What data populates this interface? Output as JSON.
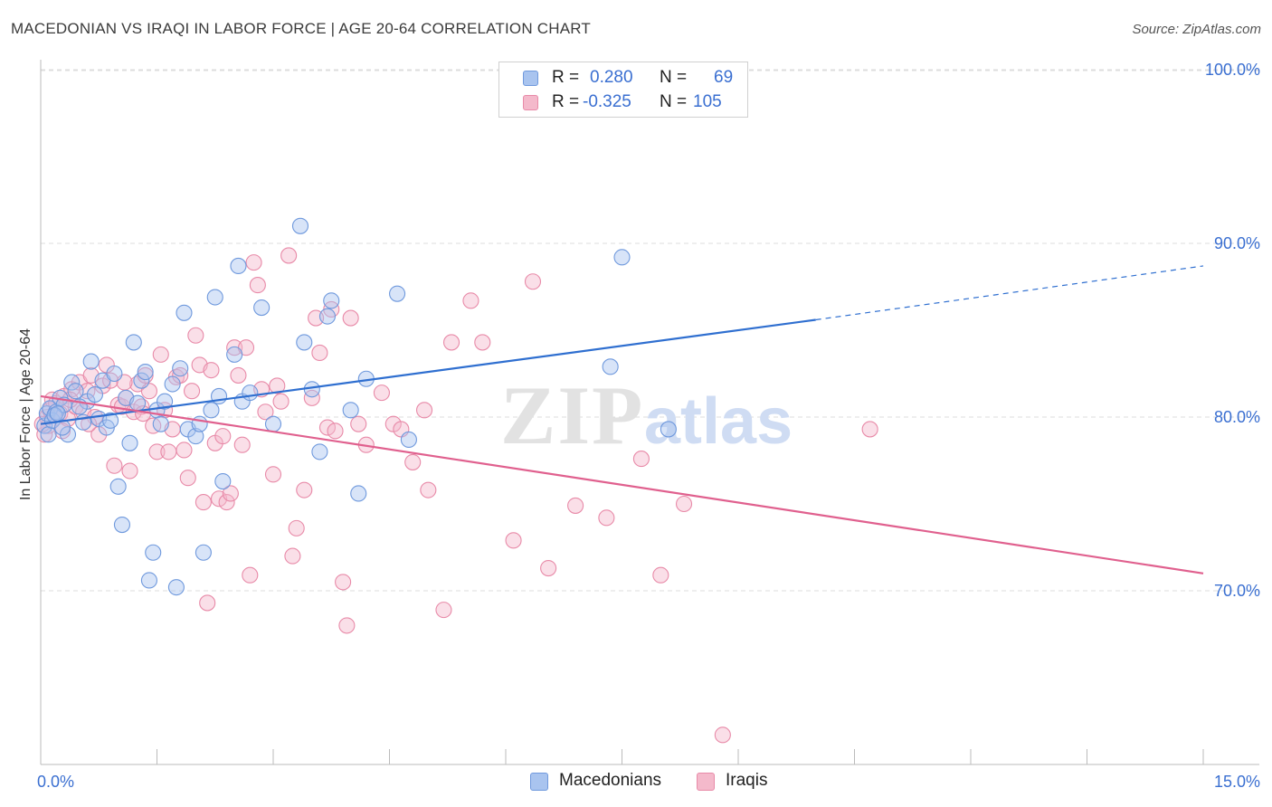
{
  "title": "MACEDONIAN VS IRAQI IN LABOR FORCE | AGE 20-64 CORRELATION CHART",
  "source": "Source: ZipAtlas.com",
  "watermark": {
    "zip": "ZIP",
    "atlas": "atlas"
  },
  "colors": {
    "blue_fill": "#a9c4ef",
    "blue_stroke": "#6f99dd",
    "blue_line": "#2f6fd0",
    "pink_fill": "#f4b9cb",
    "pink_stroke": "#e88aa8",
    "pink_line": "#e0608e",
    "axis_label": "#3a6fd1",
    "grid": "#dcdcdc"
  },
  "legend": {
    "rows": [
      {
        "r_label": "R =",
        "r_value": "0.280",
        "n_label": "N =",
        "n_value": "69"
      },
      {
        "r_label": "R =",
        "r_value": "-0.325",
        "n_label": "N =",
        "n_value": "105"
      }
    ]
  },
  "bottom_legend": [
    "Macedonians",
    "Iraqis"
  ],
  "chart_data": {
    "type": "scatter",
    "title": "MACEDONIAN VS IRAQI IN LABOR FORCE | AGE 20-64 CORRELATION CHART",
    "xlabel": "",
    "ylabel": "In Labor Force | Age 20-64",
    "xlim": [
      0,
      15
    ],
    "ylim": [
      60,
      102
    ],
    "x_tick_labels": [
      "0.0%",
      "15.0%"
    ],
    "y_ticks": [
      70,
      80,
      90,
      100
    ],
    "y_tick_labels": [
      "70.0%",
      "80.0%",
      "90.0%",
      "100.0%"
    ],
    "grid": true,
    "legend_placement": "top-center",
    "series": [
      {
        "name": "Macedonians",
        "color": "#6f99dd",
        "trend": {
          "x": [
            0,
            10
          ],
          "y": [
            79.6,
            85.6
          ],
          "dashed_extension_to_x": 15,
          "dashed_y_end": 88.7
        },
        "points": [
          [
            0.05,
            79.5
          ],
          [
            0.08,
            80.2
          ],
          [
            0.1,
            79.0
          ],
          [
            0.12,
            80.5
          ],
          [
            0.15,
            79.8
          ],
          [
            0.2,
            80.3
          ],
          [
            0.25,
            81.1
          ],
          [
            0.3,
            80.7
          ],
          [
            0.35,
            79.0
          ],
          [
            0.4,
            82.0
          ],
          [
            0.45,
            81.5
          ],
          [
            0.55,
            79.7
          ],
          [
            0.6,
            80.9
          ],
          [
            0.65,
            83.2
          ],
          [
            0.7,
            81.3
          ],
          [
            0.75,
            79.9
          ],
          [
            0.8,
            82.1
          ],
          [
            0.85,
            79.4
          ],
          [
            0.9,
            79.8
          ],
          [
            0.95,
            82.5
          ],
          [
            1.0,
            76.0
          ],
          [
            1.05,
            73.8
          ],
          [
            1.1,
            81.1
          ],
          [
            1.15,
            78.5
          ],
          [
            1.2,
            84.3
          ],
          [
            1.3,
            82.1
          ],
          [
            1.35,
            82.6
          ],
          [
            1.4,
            70.6
          ],
          [
            1.45,
            72.2
          ],
          [
            1.5,
            80.4
          ],
          [
            1.55,
            79.6
          ],
          [
            1.6,
            80.9
          ],
          [
            1.7,
            81.9
          ],
          [
            1.75,
            70.2
          ],
          [
            1.8,
            82.8
          ],
          [
            1.85,
            86.0
          ],
          [
            1.9,
            79.3
          ],
          [
            2.0,
            78.9
          ],
          [
            2.05,
            79.6
          ],
          [
            2.1,
            72.2
          ],
          [
            2.2,
            80.4
          ],
          [
            2.25,
            86.9
          ],
          [
            2.3,
            81.2
          ],
          [
            2.35,
            76.3
          ],
          [
            2.5,
            83.6
          ],
          [
            2.55,
            88.7
          ],
          [
            2.6,
            80.9
          ],
          [
            2.7,
            81.4
          ],
          [
            2.85,
            86.3
          ],
          [
            3.0,
            79.6
          ],
          [
            3.35,
            91.0
          ],
          [
            3.4,
            84.3
          ],
          [
            3.5,
            81.6
          ],
          [
            3.6,
            78.0
          ],
          [
            3.7,
            85.8
          ],
          [
            3.75,
            86.7
          ],
          [
            4.0,
            80.4
          ],
          [
            4.1,
            75.6
          ],
          [
            4.2,
            82.2
          ],
          [
            4.6,
            87.1
          ],
          [
            4.75,
            78.7
          ],
          [
            7.35,
            82.9
          ],
          [
            7.5,
            89.2
          ],
          [
            8.1,
            79.3
          ],
          [
            0.18,
            80.1
          ],
          [
            0.22,
            80.2
          ],
          [
            0.28,
            79.4
          ],
          [
            0.5,
            80.6
          ],
          [
            1.25,
            80.8
          ]
        ]
      },
      {
        "name": "Iraqis",
        "color": "#e88aa8",
        "trend": {
          "x": [
            0,
            15
          ],
          "y": [
            81.2,
            71.0
          ]
        },
        "points": [
          [
            0.05,
            79.0
          ],
          [
            0.08,
            80.0
          ],
          [
            0.1,
            79.5
          ],
          [
            0.12,
            80.4
          ],
          [
            0.15,
            81.0
          ],
          [
            0.2,
            80.8
          ],
          [
            0.25,
            80.2
          ],
          [
            0.3,
            81.2
          ],
          [
            0.35,
            79.9
          ],
          [
            0.4,
            81.6
          ],
          [
            0.45,
            80.6
          ],
          [
            0.5,
            82.0
          ],
          [
            0.55,
            80.3
          ],
          [
            0.6,
            81.5
          ],
          [
            0.65,
            82.4
          ],
          [
            0.7,
            80.0
          ],
          [
            0.75,
            79.0
          ],
          [
            0.8,
            81.8
          ],
          [
            0.85,
            83.0
          ],
          [
            0.9,
            82.1
          ],
          [
            0.95,
            77.2
          ],
          [
            1.0,
            80.7
          ],
          [
            1.05,
            80.6
          ],
          [
            1.1,
            81.1
          ],
          [
            1.15,
            76.9
          ],
          [
            1.2,
            80.3
          ],
          [
            1.25,
            81.9
          ],
          [
            1.3,
            80.6
          ],
          [
            1.35,
            82.4
          ],
          [
            1.4,
            81.5
          ],
          [
            1.45,
            79.5
          ],
          [
            1.5,
            78.0
          ],
          [
            1.55,
            83.6
          ],
          [
            1.6,
            80.4
          ],
          [
            1.65,
            78.0
          ],
          [
            1.7,
            79.3
          ],
          [
            1.75,
            82.3
          ],
          [
            1.8,
            82.4
          ],
          [
            1.85,
            78.1
          ],
          [
            1.9,
            76.5
          ],
          [
            1.95,
            81.5
          ],
          [
            2.0,
            84.7
          ],
          [
            2.05,
            83.0
          ],
          [
            2.1,
            75.1
          ],
          [
            2.15,
            69.3
          ],
          [
            2.2,
            82.7
          ],
          [
            2.25,
            78.5
          ],
          [
            2.3,
            75.3
          ],
          [
            2.35,
            78.9
          ],
          [
            2.4,
            75.1
          ],
          [
            2.45,
            75.6
          ],
          [
            2.5,
            84.0
          ],
          [
            2.55,
            82.4
          ],
          [
            2.6,
            78.4
          ],
          [
            2.65,
            84.0
          ],
          [
            2.7,
            70.9
          ],
          [
            2.75,
            88.9
          ],
          [
            2.8,
            87.6
          ],
          [
            2.85,
            81.6
          ],
          [
            2.9,
            80.3
          ],
          [
            3.0,
            76.7
          ],
          [
            3.05,
            81.8
          ],
          [
            3.1,
            80.9
          ],
          [
            3.2,
            89.3
          ],
          [
            3.25,
            72.0
          ],
          [
            3.3,
            73.6
          ],
          [
            3.4,
            75.8
          ],
          [
            3.5,
            81.1
          ],
          [
            3.55,
            85.7
          ],
          [
            3.6,
            83.7
          ],
          [
            3.7,
            79.4
          ],
          [
            3.75,
            86.2
          ],
          [
            3.8,
            79.2
          ],
          [
            3.9,
            70.5
          ],
          [
            3.95,
            68.0
          ],
          [
            4.0,
            85.7
          ],
          [
            4.1,
            79.6
          ],
          [
            4.2,
            78.4
          ],
          [
            4.4,
            81.4
          ],
          [
            4.55,
            79.6
          ],
          [
            4.65,
            79.3
          ],
          [
            4.8,
            77.4
          ],
          [
            4.95,
            80.4
          ],
          [
            5.0,
            75.8
          ],
          [
            5.2,
            68.9
          ],
          [
            5.3,
            84.3
          ],
          [
            5.55,
            86.7
          ],
          [
            5.7,
            84.3
          ],
          [
            6.1,
            72.9
          ],
          [
            6.35,
            87.8
          ],
          [
            6.55,
            71.3
          ],
          [
            6.9,
            74.9
          ],
          [
            7.3,
            74.2
          ],
          [
            7.75,
            77.6
          ],
          [
            8.0,
            70.9
          ],
          [
            8.3,
            75.0
          ],
          [
            8.8,
            61.7
          ],
          [
            10.7,
            79.3
          ],
          [
            0.02,
            79.6
          ],
          [
            0.18,
            80.1
          ],
          [
            0.28,
            79.2
          ],
          [
            0.38,
            81.0
          ],
          [
            0.62,
            79.6
          ],
          [
            1.08,
            82.0
          ],
          [
            1.32,
            80.2
          ]
        ]
      }
    ]
  }
}
